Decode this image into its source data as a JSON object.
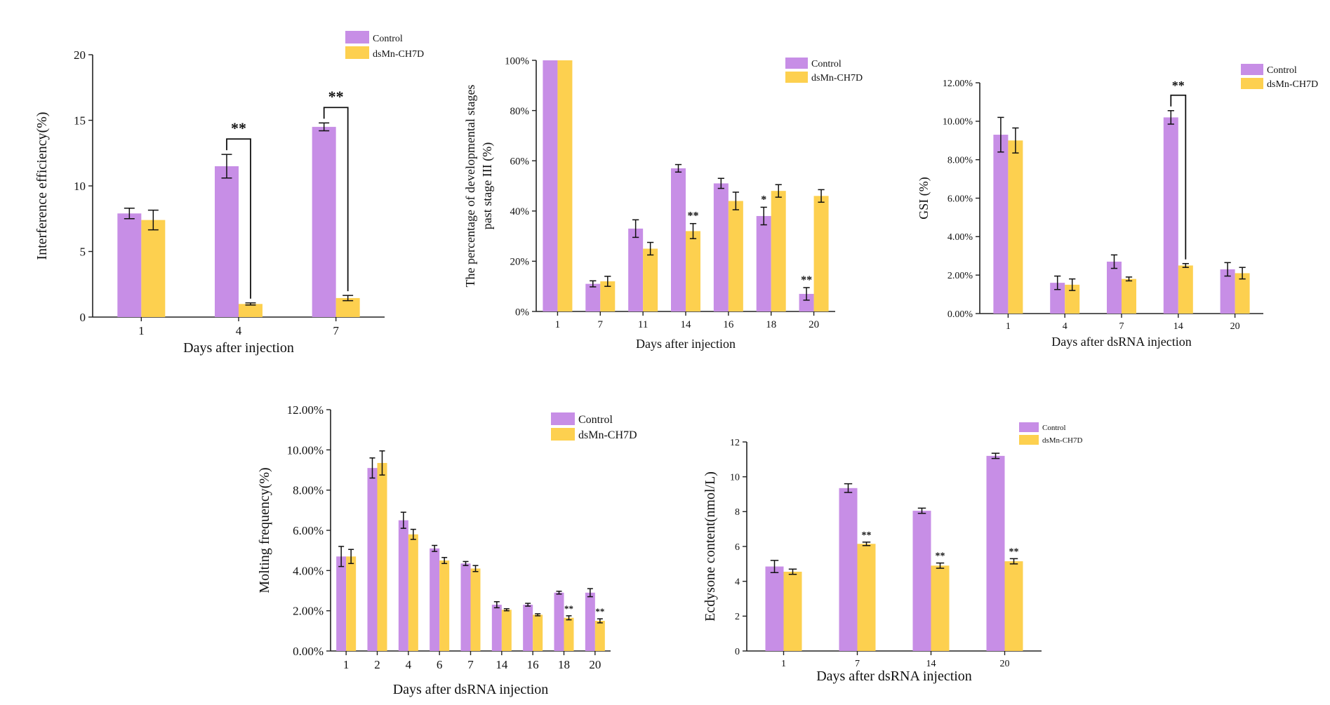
{
  "colors": {
    "control": "#c78ee6",
    "treatment": "#fdd04f",
    "axis": "#222222"
  },
  "chart_data": [
    {
      "type": "bar",
      "ylabel": "Interference efficiency(%)",
      "xlabel": "Days after injection",
      "categories": [
        "1",
        "4",
        "7"
      ],
      "ylim": [
        0,
        20
      ],
      "yticks": [
        "0",
        "5",
        "10",
        "15",
        "20"
      ],
      "legend_placement": "top-right",
      "series": [
        {
          "name": "Control",
          "values": [
            7.9,
            11.5,
            14.5
          ],
          "errors": [
            0.4,
            0.9,
            0.3
          ]
        },
        {
          "name": "dsMn-CH7D",
          "values": [
            7.4,
            1.0,
            1.45
          ],
          "errors": [
            0.75,
            0.08,
            0.2
          ]
        }
      ],
      "annotations": [
        {
          "category": "4",
          "text": "**",
          "bracket": true
        },
        {
          "category": "7",
          "text": "**",
          "bracket": true
        }
      ]
    },
    {
      "type": "bar",
      "ylabel": "The percentage of developmental stages past stage III (%)",
      "xlabel": "Days after injection",
      "categories": [
        "1",
        "7",
        "11",
        "14",
        "16",
        "18",
        "20"
      ],
      "ylim": [
        0,
        100
      ],
      "yticks": [
        "0%",
        "20%",
        "40%",
        "60%",
        "80%",
        "100%"
      ],
      "legend_placement": "top-right",
      "series": [
        {
          "name": "Control",
          "values": [
            100,
            11,
            33,
            57,
            51,
            38,
            7
          ],
          "errors": [
            0,
            1.2,
            3.5,
            1.5,
            2,
            3.5,
            2.5
          ]
        },
        {
          "name": "dsMn-CH7D",
          "values": [
            100,
            12,
            25,
            32,
            44,
            48,
            46
          ],
          "errors": [
            0,
            2,
            2.5,
            3,
            3.5,
            2.5,
            2.5
          ]
        }
      ],
      "annotations": [
        {
          "category": "14",
          "text": "**"
        },
        {
          "category": "18",
          "text": "*"
        },
        {
          "category": "20",
          "text": "**"
        }
      ]
    },
    {
      "type": "bar",
      "ylabel": "GSI (%)",
      "xlabel": "Days after dsRNA injection",
      "categories": [
        "1",
        "4",
        "7",
        "14",
        "20"
      ],
      "ylim": [
        0,
        12
      ],
      "yticks": [
        "0.00%",
        "2.00%",
        "4.00%",
        "6.00%",
        "8.00%",
        "10.00%",
        "12.00%"
      ],
      "legend_placement": "top-right",
      "series": [
        {
          "name": "Control",
          "values": [
            9.3,
            1.6,
            2.7,
            10.2,
            2.3
          ],
          "errors": [
            0.9,
            0.35,
            0.35,
            0.35,
            0.35
          ]
        },
        {
          "name": "dsMn-CH7D",
          "values": [
            9.0,
            1.5,
            1.8,
            2.5,
            2.1
          ],
          "errors": [
            0.65,
            0.3,
            0.1,
            0.1,
            0.3
          ]
        }
      ],
      "annotations": [
        {
          "category": "14",
          "text": "**",
          "bracket": true
        }
      ]
    },
    {
      "type": "bar",
      "ylabel": "Molting frequency(%)",
      "xlabel": "Days after dsRNA injection",
      "categories": [
        "1",
        "2",
        "4",
        "6",
        "7",
        "14",
        "16",
        "18",
        "20"
      ],
      "ylim": [
        0,
        12
      ],
      "yticks": [
        "0.00%",
        "2.00%",
        "4.00%",
        "6.00%",
        "8.00%",
        "10.00%",
        "12.00%"
      ],
      "legend_placement": "top-right",
      "series": [
        {
          "name": "Control",
          "values": [
            4.7,
            9.1,
            6.5,
            5.1,
            4.35,
            2.3,
            2.3,
            2.9,
            2.9
          ],
          "errors": [
            0.5,
            0.5,
            0.4,
            0.15,
            0.1,
            0.15,
            0.07,
            0.07,
            0.2
          ]
        },
        {
          "name": "dsMn-CH7D",
          "values": [
            4.7,
            9.35,
            5.8,
            4.5,
            4.1,
            2.05,
            1.8,
            1.65,
            1.5
          ],
          "errors": [
            0.35,
            0.6,
            0.25,
            0.15,
            0.15,
            0.05,
            0.05,
            0.1,
            0.1
          ]
        }
      ],
      "annotations": [
        {
          "category": "18",
          "text": "**"
        },
        {
          "category": "20",
          "text": "**"
        }
      ]
    },
    {
      "type": "bar",
      "ylabel": "Ecdysone content(nmol/L)",
      "xlabel": "Days after dsRNA injection",
      "categories": [
        "1",
        "7",
        "14",
        "20"
      ],
      "ylim": [
        0,
        12
      ],
      "yticks": [
        "0",
        "2",
        "4",
        "6",
        "8",
        "10",
        "12"
      ],
      "legend_placement": "top-right",
      "series": [
        {
          "name": "Control",
          "values": [
            4.85,
            9.35,
            8.05,
            11.2
          ],
          "errors": [
            0.35,
            0.25,
            0.15,
            0.15
          ]
        },
        {
          "name": "dsMn-CH7D",
          "values": [
            4.55,
            6.15,
            4.9,
            5.15
          ],
          "errors": [
            0.15,
            0.1,
            0.15,
            0.15
          ]
        }
      ],
      "annotations": [
        {
          "category": "7",
          "text": "**"
        },
        {
          "category": "14",
          "text": "**"
        },
        {
          "category": "20",
          "text": "**"
        }
      ]
    }
  ]
}
